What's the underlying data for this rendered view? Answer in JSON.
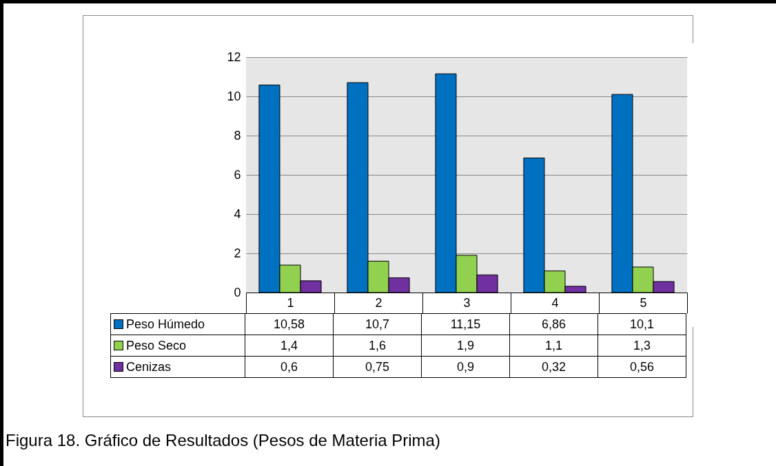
{
  "chart_data": {
    "type": "bar",
    "categories": [
      "1",
      "2",
      "3",
      "4",
      "5"
    ],
    "series": [
      {
        "name": "Peso Húmedo",
        "color": "#0070c0",
        "values": [
          10.58,
          10.7,
          11.15,
          6.86,
          10.1
        ],
        "value_labels": [
          "10,58",
          "10,7",
          "11,15",
          "6,86",
          "10,1"
        ]
      },
      {
        "name": "Peso Seco",
        "color": "#92d050",
        "values": [
          1.4,
          1.6,
          1.9,
          1.1,
          1.3
        ],
        "value_labels": [
          "1,4",
          "1,6",
          "1,9",
          "1,1",
          "1,3"
        ]
      },
      {
        "name": "Cenizas",
        "color": "#7030a0",
        "values": [
          0.6,
          0.75,
          0.9,
          0.32,
          0.56
        ],
        "value_labels": [
          "0,6",
          "0,75",
          "0,9",
          "0,32",
          "0,56"
        ]
      }
    ],
    "ylim": [
      0,
      12
    ],
    "yticks": [
      0,
      2,
      4,
      6,
      8,
      10,
      12
    ],
    "grid": "y",
    "legend": "bottom",
    "annotations": [
      "Figura 18. Gráfico de Resultados (Pesos de Materia Prima)"
    ]
  }
}
